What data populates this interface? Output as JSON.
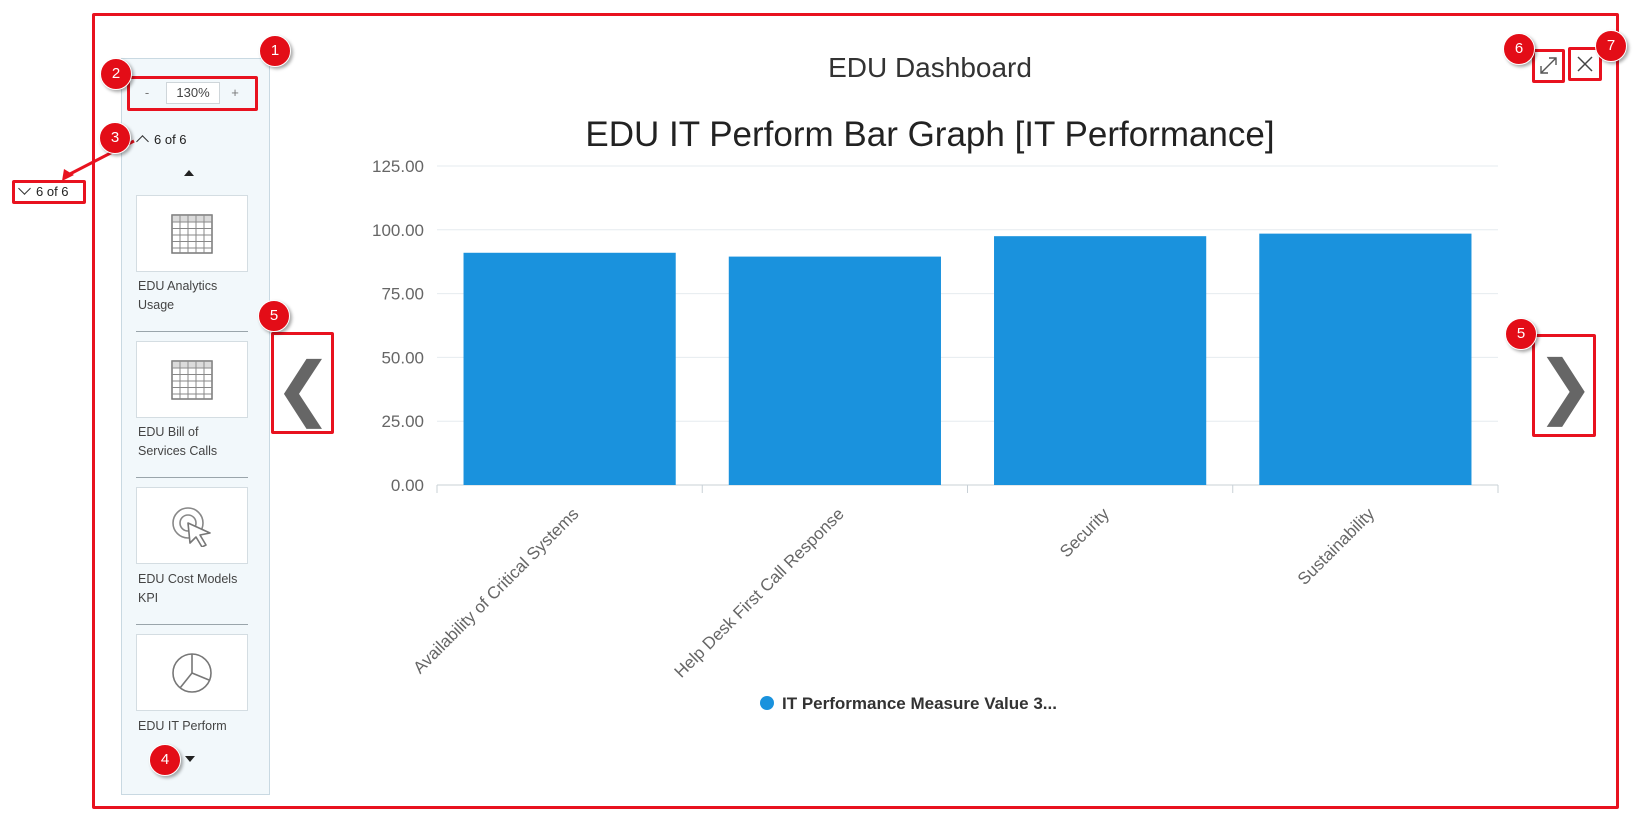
{
  "dashboard": {
    "title": "EDU Dashboard"
  },
  "zoom": {
    "minus": "-",
    "value": "130%",
    "plus": "+"
  },
  "pager": {
    "current_label": "6 of 6",
    "callout_label": "6 of 6"
  },
  "thumbnails": [
    {
      "label_line1": "EDU Analytics",
      "label_line2": "Usage",
      "icon": "grid-table-icon"
    },
    {
      "label_line1": "EDU Bill of",
      "label_line2": "Services Calls",
      "icon": "grid-table-icon"
    },
    {
      "label_line1": "EDU Cost Models",
      "label_line2": "KPI",
      "icon": "cursor-click-icon"
    },
    {
      "label_line1": "EDU IT Perform",
      "label_line2": "",
      "icon": "pie-chart-icon"
    }
  ],
  "badges": [
    "1",
    "2",
    "3",
    "4",
    "5",
    "5",
    "6",
    "7"
  ],
  "nav": {
    "prev": "❮",
    "next": "❯"
  },
  "colors": {
    "callout_red": "#e8121f",
    "bar_blue": "#1a92dd"
  },
  "chart_data": {
    "type": "bar",
    "title": "EDU IT Perform Bar Graph [IT Performance]",
    "categories": [
      "Availability of Critical Systems",
      "Help Desk First Call Response",
      "Security",
      "Sustainability"
    ],
    "series": [
      {
        "name": "IT Performance Measure Value 3...",
        "values": [
          91,
          89.5,
          97.5,
          98.5
        ]
      }
    ],
    "ylim": [
      0,
      125
    ],
    "yticks": [
      "0.00",
      "25.00",
      "50.00",
      "75.00",
      "100.00",
      "125.00"
    ],
    "grid": true,
    "legend": "bottom"
  }
}
